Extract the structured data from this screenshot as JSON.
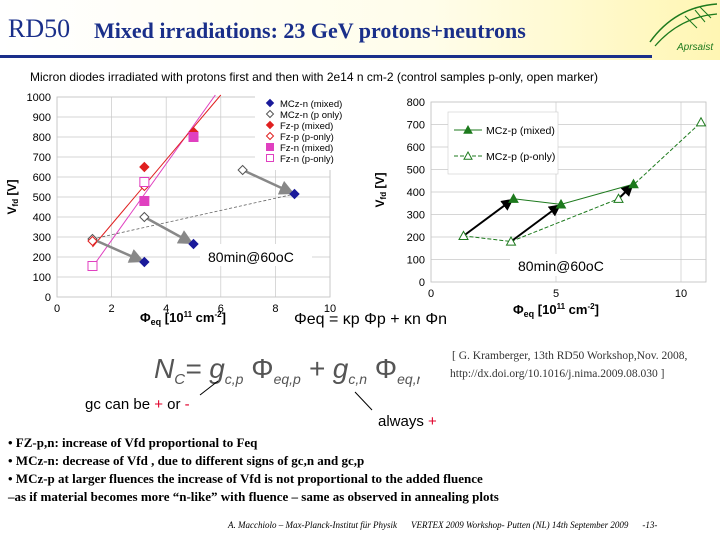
{
  "slide": {
    "title_rd": "RD50",
    "title_rest": "Mixed irradiations: 23 GeV protons+neutrons",
    "subtitle": "Micron diodes irradiated with protons first and then with 2e14 n cm-2 (control samples p-only, open marker)",
    "logo_text": "Aprsaist"
  },
  "formulas": {
    "phi_eq": "Φeq = κp Φp + κn Φn",
    "nc_lhs": "N",
    "nc_lhs_sub": "C",
    "nc_eq": "= g",
    "nc_term1_sub": "c,p",
    "nc_phi1": "Φ",
    "nc_phi1_sub": "eq,p",
    "nc_plus": "+ g",
    "nc_term2_sub": "c,n",
    "nc_phi2": "Φ",
    "nc_phi2_sub": "eq,n"
  },
  "reference": {
    "line1": "[ G. Kramberger, 13th RD50 Workshop,Nov. 2008,",
    "line2": "http://dx.doi.org/10.1016/j.nima.2009.08.030 ]"
  },
  "notes": {
    "gc_text": "gc can be",
    "gc_plus": "+",
    "gc_or": "or",
    "gc_minus": "-",
    "always_text": "always",
    "always_plus": "+"
  },
  "bullets": [
    "•  FZ-p,n: increase of Vfd proportional to Feq",
    "•  MCz-n: decrease of Vfd , due to different signs of gc,n and gc,p",
    "•  MCz-p at larger fluences the increase of Vfd is not proportional to the added fluence",
    "–as if material becomes more “n-like” with fluence – same as observed in annealing plots"
  ],
  "footer": {
    "author": "A. Macchiolo – Max-Planck-Institut für Physik",
    "event": "VERTEX 2009 Workshop- Putten (NL) 14th September 2009",
    "page": "-13-"
  },
  "colors": {
    "title_blue": "#1a2f8a",
    "green_series": "#1d7a1d",
    "magenta": "#e040c0",
    "red": "#e02020",
    "dark_blue": "#1a1a9a",
    "violet": "#8080e0"
  },
  "chart_data": [
    {
      "type": "scatter",
      "title": "",
      "xlabel": "Φeq [10^11 cm^-2]",
      "ylabel": "Vfd [V]",
      "annotation": "80min@60oC",
      "xlim": [
        0,
        10
      ],
      "ylim": [
        0,
        1000
      ],
      "xticks": [
        "0",
        "2",
        "4",
        "6",
        "8",
        "10"
      ],
      "yticks": [
        "0",
        "100",
        "200",
        "300",
        "400",
        "500",
        "600",
        "700",
        "800",
        "900",
        "1000"
      ],
      "legend_position": "top-right",
      "series": [
        {
          "name": "MCz-n (mixed)",
          "marker": "filled-diamond",
          "color": "#1a1a9a",
          "x": [
            3.2,
            5.0,
            8.7
          ],
          "y": [
            175,
            265,
            515
          ]
        },
        {
          "name": "MCz-n (p only)",
          "marker": "open-diamond",
          "color": "#555555",
          "x": [
            1.3,
            3.2,
            6.8
          ],
          "y": [
            290,
            400,
            635
          ]
        },
        {
          "name": "Fz-p (mixed)",
          "marker": "filled-diamond",
          "color": "#e02020",
          "x": [
            3.2,
            5.0
          ],
          "y": [
            650,
            825
          ]
        },
        {
          "name": "Fz-p (p-only)",
          "marker": "open-diamond",
          "color": "#e02020",
          "x": [
            1.3,
            3.2
          ],
          "y": [
            280,
            555
          ]
        },
        {
          "name": "Fz-n (mixed)",
          "marker": "filled-square",
          "color": "#e040c0",
          "x": [
            3.2,
            5.0
          ],
          "y": [
            480,
            800
          ]
        },
        {
          "name": "Fz-n (p-only)",
          "marker": "open-square",
          "color": "#e040c0",
          "x": [
            1.3,
            3.2
          ],
          "y": [
            155,
            575
          ]
        }
      ]
    },
    {
      "type": "line",
      "title": "",
      "xlabel": "Φeq [10^11 cm^-2]",
      "ylabel": "Vfd [V]",
      "annotation": "80min@60oC",
      "xlim": [
        0,
        11
      ],
      "ylim": [
        0,
        800
      ],
      "xticks": [
        "0",
        "5",
        "10"
      ],
      "yticks": [
        "0",
        "100",
        "200",
        "300",
        "400",
        "500",
        "600",
        "700",
        "800"
      ],
      "legend_position": "top-right",
      "series": [
        {
          "name": "MCz-p (mixed)",
          "marker": "filled-triangle",
          "color": "#1d7a1d",
          "x": [
            3.3,
            5.2,
            8.1
          ],
          "y": [
            370,
            345,
            435
          ]
        },
        {
          "name": "MCz-p (p-only)",
          "marker": "open-triangle",
          "color": "#1d7a1d",
          "x": [
            1.3,
            3.2,
            7.5,
            10.8
          ],
          "y": [
            205,
            180,
            370,
            710
          ]
        }
      ]
    }
  ]
}
